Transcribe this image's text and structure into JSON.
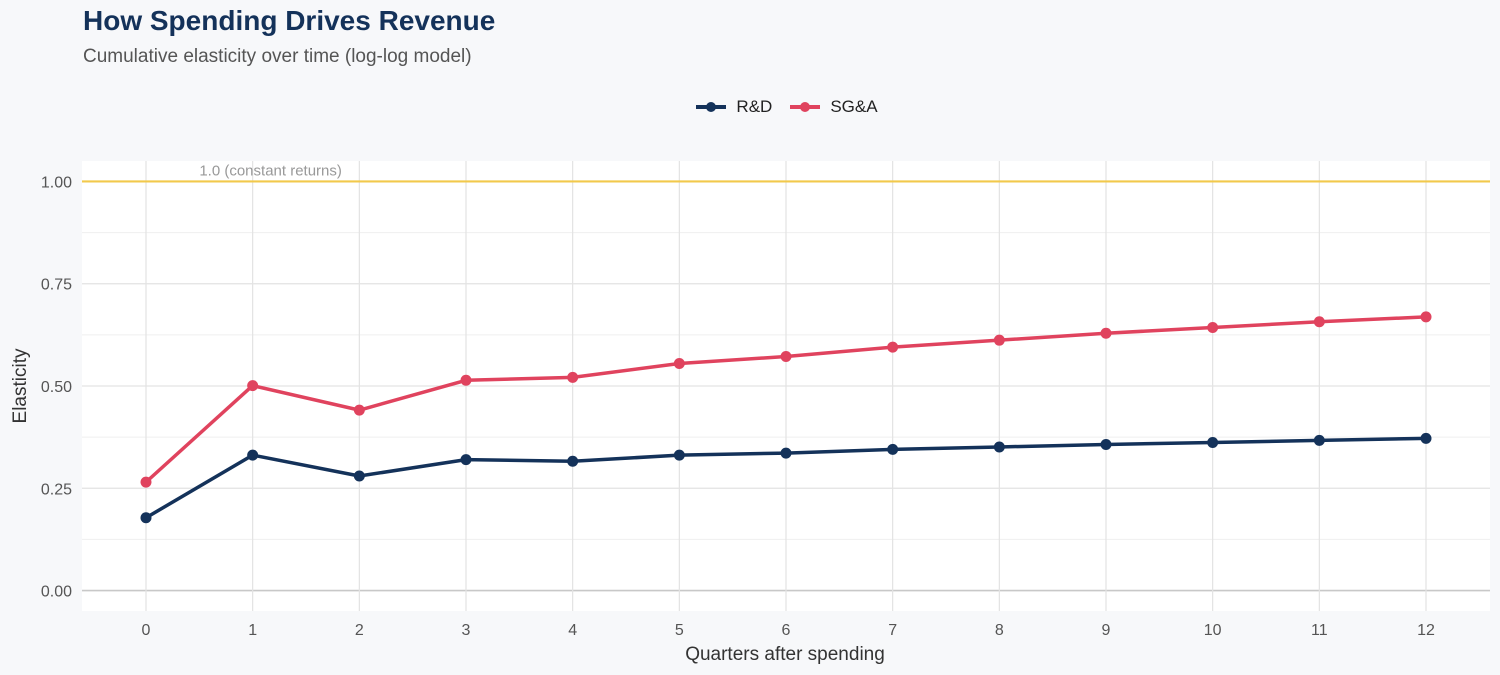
{
  "title": "How Spending Drives Revenue",
  "subtitle": "Cumulative elasticity over time (log-log model)",
  "colors": {
    "rd": "#14325a",
    "sga": "#e0435e",
    "reference": "#f2c94c",
    "grid": "#e3e3e3",
    "panel": "#ffffff"
  },
  "chart_data": {
    "type": "line",
    "title": "How Spending Drives Revenue",
    "subtitle": "Cumulative elasticity over time (log-log model)",
    "xlabel": "Quarters after spending",
    "ylabel": "Elasticity",
    "x": [
      0,
      1,
      2,
      3,
      4,
      5,
      6,
      7,
      8,
      9,
      10,
      11,
      12
    ],
    "x_tick_labels": [
      "0",
      "1",
      "2",
      "3",
      "4",
      "5",
      "6",
      "7",
      "8",
      "9",
      "10",
      "11",
      "12"
    ],
    "y_ticks": [
      0,
      0.25,
      0.5,
      0.75,
      1.0
    ],
    "y_tick_labels": [
      "0.00",
      "0.25",
      "0.50",
      "0.75",
      "1.00"
    ],
    "ylim": [
      -0.05,
      1.05
    ],
    "xlim": [
      -0.6,
      12.6
    ],
    "grid": true,
    "legend": "top-center",
    "reference_line": {
      "y": 1.0,
      "label": "1.0 (constant returns)"
    },
    "series": [
      {
        "name": "R&D",
        "key": "rd",
        "values": [
          0.178,
          0.331,
          0.28,
          0.32,
          0.316,
          0.331,
          0.336,
          0.345,
          0.351,
          0.357,
          0.362,
          0.367,
          0.372
        ]
      },
      {
        "name": "SG&A",
        "key": "sga",
        "values": [
          0.265,
          0.501,
          0.441,
          0.514,
          0.521,
          0.555,
          0.572,
          0.595,
          0.612,
          0.629,
          0.643,
          0.657,
          0.669
        ]
      }
    ]
  }
}
